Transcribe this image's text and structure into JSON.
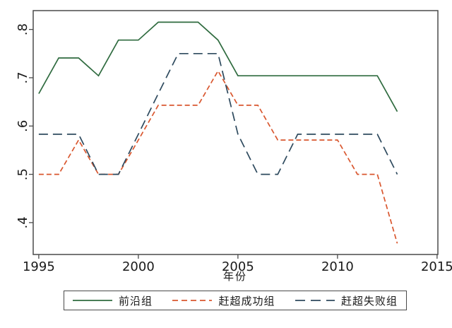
{
  "chart_data": {
    "type": "line",
    "title": "",
    "xlabel": "年份",
    "ylabel": "",
    "x": [
      1995,
      1996,
      1997,
      1998,
      1999,
      2000,
      2001,
      2002,
      2003,
      2004,
      2005,
      2006,
      2007,
      2008,
      2009,
      2010,
      2011,
      2012,
      2013
    ],
    "series": [
      {
        "name": "前沿组",
        "color": "#2f6b3f",
        "dash": "solid",
        "values": [
          0.667,
          0.741,
          0.741,
          0.704,
          0.778,
          0.778,
          0.815,
          0.815,
          0.815,
          0.778,
          0.704,
          0.704,
          0.704,
          0.704,
          0.704,
          0.704,
          0.704,
          0.704,
          0.63
        ]
      },
      {
        "name": "赶超成功组",
        "color": "#d9572f",
        "dash": "short-dash",
        "values": [
          0.5,
          0.5,
          0.571,
          0.5,
          0.5,
          0.571,
          0.643,
          0.643,
          0.643,
          0.714,
          0.643,
          0.643,
          0.571,
          0.571,
          0.571,
          0.571,
          0.5,
          0.5,
          0.357
        ]
      },
      {
        "name": "赶超失败组",
        "color": "#2e4a5e",
        "dash": "long-dash",
        "values": [
          0.583,
          0.583,
          0.583,
          0.5,
          0.5,
          0.583,
          0.667,
          0.75,
          0.75,
          0.75,
          0.583,
          0.5,
          0.5,
          0.583,
          0.583,
          0.583,
          0.583,
          0.583,
          0.5
        ]
      }
    ],
    "x_ticks": [
      1995,
      2000,
      2005,
      2010,
      2015
    ],
    "x_tick_labels": [
      "1995",
      "2000",
      "2005",
      "2010",
      "2015"
    ],
    "y_ticks": [
      0.4,
      0.5,
      0.6,
      0.7,
      0.8
    ],
    "y_tick_labels": [
      ".4",
      ".5",
      ".6",
      ".7",
      ".8"
    ],
    "xlim": [
      1994.72,
      2015.04
    ],
    "ylim": [
      0.334,
      0.839
    ],
    "grid": false,
    "legend_position": "bottom"
  },
  "style": {
    "frame_color": "#4a4a4a",
    "text_color": "#1a1a1a",
    "background": "#ffffff"
  }
}
